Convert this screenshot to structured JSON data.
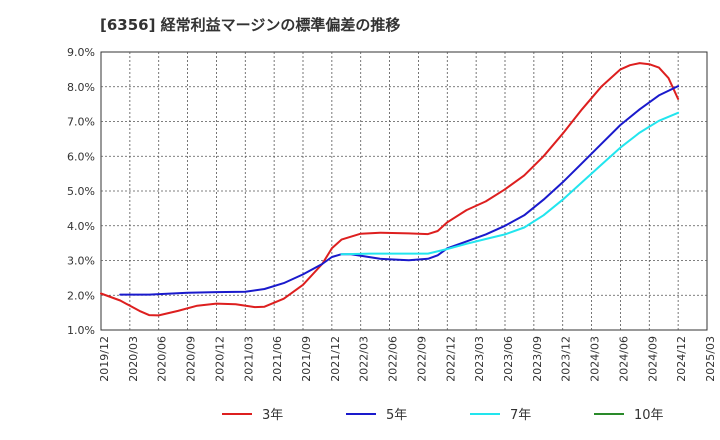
{
  "chart_data": {
    "type": "line",
    "title": "[6356]  経常利益マージンの標準偏差の推移",
    "xlabel": "",
    "ylabel": "",
    "ylim": [
      1.0,
      9.0
    ],
    "y_ticks": [
      "1.0%",
      "2.0%",
      "3.0%",
      "4.0%",
      "5.0%",
      "6.0%",
      "7.0%",
      "8.0%",
      "9.0%"
    ],
    "x_ticks": [
      "2019/12",
      "2020/03",
      "2020/06",
      "2020/09",
      "2020/12",
      "2021/03",
      "2021/06",
      "2021/09",
      "2021/12",
      "2022/03",
      "2022/06",
      "2022/09",
      "2022/12",
      "2023/03",
      "2023/06",
      "2023/09",
      "2023/12",
      "2024/03",
      "2024/06",
      "2024/09",
      "2024/12",
      "2025/03"
    ],
    "grid": true,
    "legend_position": "bottom",
    "series": [
      {
        "name": "3年",
        "color": "#dd1f1f",
        "points": [
          [
            "2019/12",
            2.05
          ],
          [
            "2020/02",
            1.85
          ],
          [
            "2020/04",
            1.55
          ],
          [
            "2020/05",
            1.43
          ],
          [
            "2020/06",
            1.42
          ],
          [
            "2020/08",
            1.55
          ],
          [
            "2020/10",
            1.7
          ],
          [
            "2020/12",
            1.76
          ],
          [
            "2021/02",
            1.74
          ],
          [
            "2021/04",
            1.66
          ],
          [
            "2021/05",
            1.67
          ],
          [
            "2021/07",
            1.9
          ],
          [
            "2021/09",
            2.3
          ],
          [
            "2021/11",
            2.9
          ],
          [
            "2021/12",
            3.35
          ],
          [
            "2022/01",
            3.6
          ],
          [
            "2022/03",
            3.77
          ],
          [
            "2022/05",
            3.8
          ],
          [
            "2022/08",
            3.78
          ],
          [
            "2022/10",
            3.76
          ],
          [
            "2022/11",
            3.85
          ],
          [
            "2022/12",
            4.1
          ],
          [
            "2023/02",
            4.45
          ],
          [
            "2023/04",
            4.7
          ],
          [
            "2023/06",
            5.05
          ],
          [
            "2023/08",
            5.45
          ],
          [
            "2023/10",
            6.0
          ],
          [
            "2023/12",
            6.65
          ],
          [
            "2024/02",
            7.35
          ],
          [
            "2024/04",
            8.0
          ],
          [
            "2024/06",
            8.5
          ],
          [
            "2024/07",
            8.62
          ],
          [
            "2024/08",
            8.68
          ],
          [
            "2024/09",
            8.65
          ],
          [
            "2024/10",
            8.55
          ],
          [
            "2024/11",
            8.25
          ],
          [
            "2024/12",
            7.65
          ]
        ]
      },
      {
        "name": "5年",
        "color": "#1a1acc",
        "points": [
          [
            "2020/02",
            2.02
          ],
          [
            "2020/05",
            2.02
          ],
          [
            "2020/09",
            2.07
          ],
          [
            "2020/12",
            2.09
          ],
          [
            "2021/03",
            2.1
          ],
          [
            "2021/05",
            2.18
          ],
          [
            "2021/07",
            2.35
          ],
          [
            "2021/09",
            2.6
          ],
          [
            "2021/11",
            2.9
          ],
          [
            "2021/12",
            3.1
          ],
          [
            "2022/01",
            3.18
          ],
          [
            "2022/02",
            3.18
          ],
          [
            "2022/05",
            3.05
          ],
          [
            "2022/08",
            3.01
          ],
          [
            "2022/10",
            3.05
          ],
          [
            "2022/11",
            3.15
          ],
          [
            "2022/12",
            3.35
          ],
          [
            "2023/02",
            3.55
          ],
          [
            "2023/04",
            3.75
          ],
          [
            "2023/06",
            4.0
          ],
          [
            "2023/08",
            4.3
          ],
          [
            "2023/10",
            4.75
          ],
          [
            "2023/12",
            5.25
          ],
          [
            "2024/02",
            5.8
          ],
          [
            "2024/04",
            6.35
          ],
          [
            "2024/06",
            6.9
          ],
          [
            "2024/08",
            7.35
          ],
          [
            "2024/10",
            7.75
          ],
          [
            "2024/12",
            8.02
          ]
        ]
      },
      {
        "name": "7年",
        "color": "#22e5ee",
        "points": [
          [
            "2022/01",
            3.18
          ],
          [
            "2022/04",
            3.2
          ],
          [
            "2022/10",
            3.2
          ],
          [
            "2022/12",
            3.33
          ],
          [
            "2023/02",
            3.48
          ],
          [
            "2023/04",
            3.62
          ],
          [
            "2023/06",
            3.75
          ],
          [
            "2023/08",
            3.95
          ],
          [
            "2023/10",
            4.3
          ],
          [
            "2023/12",
            4.75
          ],
          [
            "2024/02",
            5.25
          ],
          [
            "2024/04",
            5.75
          ],
          [
            "2024/06",
            6.25
          ],
          [
            "2024/08",
            6.68
          ],
          [
            "2024/10",
            7.02
          ],
          [
            "2024/12",
            7.25
          ]
        ]
      },
      {
        "name": "10年",
        "color": "#2a8a2a",
        "points": []
      }
    ]
  }
}
